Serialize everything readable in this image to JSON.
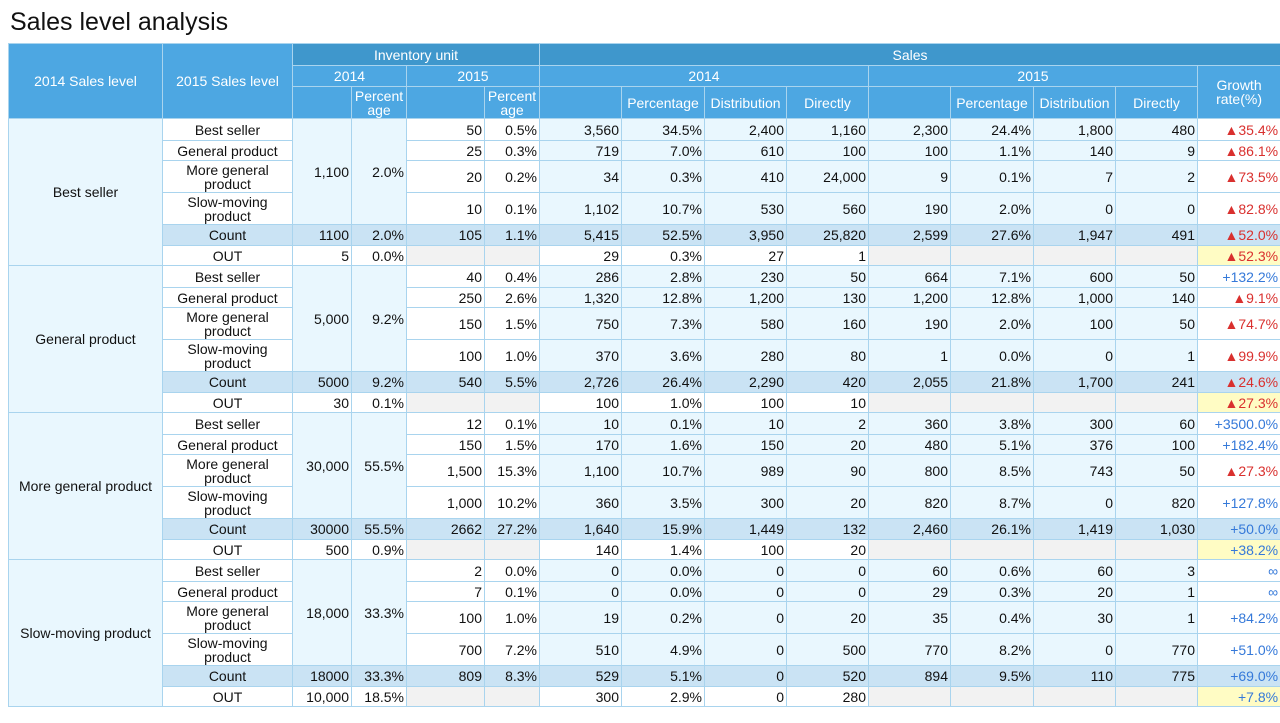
{
  "title": "Sales level analysis",
  "headers": {
    "col_2014_level": "2014 Sales level",
    "col_2015_level": "2015 Sales level",
    "inventory_unit": "Inventory unit",
    "sales": "Sales",
    "y2014": "2014",
    "y2015": "2015",
    "percentage_wrapped": "Percent age",
    "percentage": "Percentage",
    "distribution": "Distribution",
    "directly": "Directly",
    "growth_rate": "Growth rate(%)"
  },
  "groups": [
    {
      "name": "Best seller",
      "inv2014": "1,100",
      "inv2014pct": "2.0%",
      "rows": [
        {
          "level": "Best seller",
          "inv15": "50",
          "inv15p": "0.5%",
          "s14": "3,560",
          "s14p": "34.5%",
          "s14d": "2,400",
          "s14dir": "1,160",
          "s15": "2,300",
          "s15p": "24.4%",
          "s15d": "1,800",
          "s15dir": "480",
          "growth": "▲35.4%",
          "trend": "red"
        },
        {
          "level": "General product",
          "inv15": "25",
          "inv15p": "0.3%",
          "s14": "719",
          "s14p": "7.0%",
          "s14d": "610",
          "s14dir": "100",
          "s15": "100",
          "s15p": "1.1%",
          "s15d": "140",
          "s15dir": "9",
          "growth": "▲86.1%",
          "trend": "red"
        },
        {
          "level": "More general product",
          "inv15": "20",
          "inv15p": "0.2%",
          "s14": "34",
          "s14p": "0.3%",
          "s14d": "410",
          "s14dir": "24,000",
          "s15": "9",
          "s15p": "0.1%",
          "s15d": "7",
          "s15dir": "2",
          "growth": "▲73.5%",
          "trend": "red"
        },
        {
          "level": "Slow-moving product",
          "inv15": "10",
          "inv15p": "0.1%",
          "s14": "1,102",
          "s14p": "10.7%",
          "s14d": "530",
          "s14dir": "560",
          "s15": "190",
          "s15p": "2.0%",
          "s15d": "0",
          "s15dir": "0",
          "growth": "▲82.8%",
          "trend": "red"
        }
      ],
      "count": {
        "level": "Count",
        "inv14": "1100",
        "inv14p": "2.0%",
        "inv15": "105",
        "inv15p": "1.1%",
        "s14": "5,415",
        "s14p": "52.5%",
        "s14d": "3,950",
        "s14dir": "25,820",
        "s15": "2,599",
        "s15p": "27.6%",
        "s15d": "1,947",
        "s15dir": "491",
        "growth": "▲52.0%",
        "trend": "red"
      },
      "out": {
        "level": "OUT",
        "inv14": "5",
        "inv14p": "0.0%",
        "s14": "29",
        "s14p": "0.3%",
        "s14d": "27",
        "s14dir": "1",
        "growth": "▲52.3%",
        "trend": "red"
      }
    },
    {
      "name": "General product",
      "inv2014": "5,000",
      "inv2014pct": "9.2%",
      "rows": [
        {
          "level": "Best seller",
          "inv15": "40",
          "inv15p": "0.4%",
          "s14": "286",
          "s14p": "2.8%",
          "s14d": "230",
          "s14dir": "50",
          "s15": "664",
          "s15p": "7.1%",
          "s15d": "600",
          "s15dir": "50",
          "growth": "+132.2%",
          "trend": "blue"
        },
        {
          "level": "General product",
          "inv15": "250",
          "inv15p": "2.6%",
          "s14": "1,320",
          "s14p": "12.8%",
          "s14d": "1,200",
          "s14dir": "130",
          "s15": "1,200",
          "s15p": "12.8%",
          "s15d": "1,000",
          "s15dir": "140",
          "growth": "▲9.1%",
          "trend": "red"
        },
        {
          "level": "More general product",
          "inv15": "150",
          "inv15p": "1.5%",
          "s14": "750",
          "s14p": "7.3%",
          "s14d": "580",
          "s14dir": "160",
          "s15": "190",
          "s15p": "2.0%",
          "s15d": "100",
          "s15dir": "50",
          "growth": "▲74.7%",
          "trend": "red"
        },
        {
          "level": "Slow-moving product",
          "inv15": "100",
          "inv15p": "1.0%",
          "s14": "370",
          "s14p": "3.6%",
          "s14d": "280",
          "s14dir": "80",
          "s15": "1",
          "s15p": "0.0%",
          "s15d": "0",
          "s15dir": "1",
          "growth": "▲99.9%",
          "trend": "red"
        }
      ],
      "count": {
        "level": "Count",
        "inv14": "5000",
        "inv14p": "9.2%",
        "inv15": "540",
        "inv15p": "5.5%",
        "s14": "2,726",
        "s14p": "26.4%",
        "s14d": "2,290",
        "s14dir": "420",
        "s15": "2,055",
        "s15p": "21.8%",
        "s15d": "1,700",
        "s15dir": "241",
        "growth": "▲24.6%",
        "trend": "red"
      },
      "out": {
        "level": "OUT",
        "inv14": "30",
        "inv14p": "0.1%",
        "s14": "100",
        "s14p": "1.0%",
        "s14d": "100",
        "s14dir": "10",
        "growth": "▲27.3%",
        "trend": "red"
      }
    },
    {
      "name": "More general product",
      "inv2014": "30,000",
      "inv2014pct": "55.5%",
      "rows": [
        {
          "level": "Best seller",
          "inv15": "12",
          "inv15p": "0.1%",
          "s14": "10",
          "s14p": "0.1%",
          "s14d": "10",
          "s14dir": "2",
          "s15": "360",
          "s15p": "3.8%",
          "s15d": "300",
          "s15dir": "60",
          "growth": "+3500.0%",
          "trend": "blue"
        },
        {
          "level": "General product",
          "inv15": "150",
          "inv15p": "1.5%",
          "s14": "170",
          "s14p": "1.6%",
          "s14d": "150",
          "s14dir": "20",
          "s15": "480",
          "s15p": "5.1%",
          "s15d": "376",
          "s15dir": "100",
          "growth": "+182.4%",
          "trend": "blue"
        },
        {
          "level": "More general product",
          "inv15": "1,500",
          "inv15p": "15.3%",
          "s14": "1,100",
          "s14p": "10.7%",
          "s14d": "989",
          "s14dir": "90",
          "s15": "800",
          "s15p": "8.5%",
          "s15d": "743",
          "s15dir": "50",
          "growth": "▲27.3%",
          "trend": "red"
        },
        {
          "level": "Slow-moving product",
          "inv15": "1,000",
          "inv15p": "10.2%",
          "s14": "360",
          "s14p": "3.5%",
          "s14d": "300",
          "s14dir": "20",
          "s15": "820",
          "s15p": "8.7%",
          "s15d": "0",
          "s15dir": "820",
          "growth": "+127.8%",
          "trend": "blue"
        }
      ],
      "count": {
        "level": "Count",
        "inv14": "30000",
        "inv14p": "55.5%",
        "inv15": "2662",
        "inv15p": "27.2%",
        "s14": "1,640",
        "s14p": "15.9%",
        "s14d": "1,449",
        "s14dir": "132",
        "s15": "2,460",
        "s15p": "26.1%",
        "s15d": "1,419",
        "s15dir": "1,030",
        "growth": "+50.0%",
        "trend": "blue"
      },
      "out": {
        "level": "OUT",
        "inv14": "500",
        "inv14p": "0.9%",
        "s14": "140",
        "s14p": "1.4%",
        "s14d": "100",
        "s14dir": "20",
        "growth": "+38.2%",
        "trend": "blue"
      }
    },
    {
      "name": "Slow-moving product",
      "inv2014": "18,000",
      "inv2014pct": "33.3%",
      "rows": [
        {
          "level": "Best seller",
          "inv15": "2",
          "inv15p": "0.0%",
          "s14": "0",
          "s14p": "0.0%",
          "s14d": "0",
          "s14dir": "0",
          "s15": "60",
          "s15p": "0.6%",
          "s15d": "60",
          "s15dir": "3",
          "growth": "∞",
          "trend": "blue"
        },
        {
          "level": "General product",
          "inv15": "7",
          "inv15p": "0.1%",
          "s14": "0",
          "s14p": "0.0%",
          "s14d": "0",
          "s14dir": "0",
          "s15": "29",
          "s15p": "0.3%",
          "s15d": "20",
          "s15dir": "1",
          "growth": "∞",
          "trend": "blue"
        },
        {
          "level": "More general product",
          "inv15": "100",
          "inv15p": "1.0%",
          "s14": "19",
          "s14p": "0.2%",
          "s14d": "0",
          "s14dir": "20",
          "s15": "35",
          "s15p": "0.4%",
          "s15d": "30",
          "s15dir": "1",
          "growth": "+84.2%",
          "trend": "blue"
        },
        {
          "level": "Slow-moving product",
          "inv15": "700",
          "inv15p": "7.2%",
          "s14": "510",
          "s14p": "4.9%",
          "s14d": "0",
          "s14dir": "500",
          "s15": "770",
          "s15p": "8.2%",
          "s15d": "0",
          "s15dir": "770",
          "growth": "+51.0%",
          "trend": "blue"
        }
      ],
      "count": {
        "level": "Count",
        "inv14": "18000",
        "inv14p": "33.3%",
        "inv15": "809",
        "inv15p": "8.3%",
        "s14": "529",
        "s14p": "5.1%",
        "s14d": "0",
        "s14dir": "520",
        "s15": "894",
        "s15p": "9.5%",
        "s15d": "110",
        "s15dir": "775",
        "growth": "+69.0%",
        "trend": "blue"
      },
      "out": {
        "level": "OUT",
        "inv14": "10,000",
        "inv14p": "18.5%",
        "s14": "300",
        "s14p": "2.9%",
        "s14d": "0",
        "s14dir": "280",
        "growth": "+7.8%",
        "trend": "blue"
      }
    }
  ]
}
